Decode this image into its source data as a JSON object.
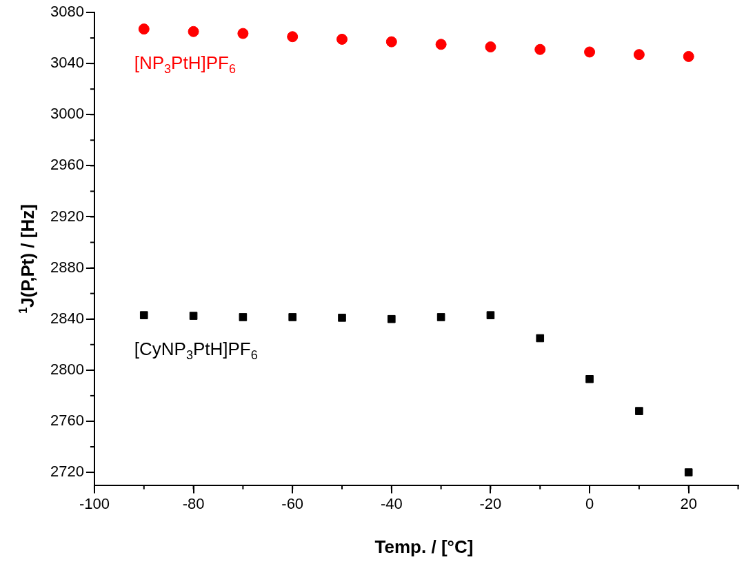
{
  "chart_data": {
    "type": "scatter",
    "xlabel": "Temp. / [°C]",
    "ylabel": "$^{1}$J(P,Pt) / [Hz]",
    "x": [
      -90,
      -80,
      -70,
      -60,
      -50,
      -40,
      -30,
      -20,
      -10,
      0,
      10,
      20
    ],
    "series": [
      {
        "name": "[NP$_{3}$PtH]PF$_{6}$",
        "color": "#ff0000",
        "marker": "circle",
        "values": [
          3067,
          3065,
          3063.5,
          3061,
          3059,
          3057,
          3055,
          3053,
          3051,
          3049,
          3047,
          3045.5
        ]
      },
      {
        "name": "[CyNP$_{3}$PtH]PF$_{6}$",
        "color": "#000000",
        "marker": "square",
        "values": [
          2843,
          2842.5,
          2841.5,
          2841.5,
          2841,
          2840,
          2841.5,
          2843,
          2825,
          2793,
          2768,
          2720
        ]
      }
    ],
    "xlim": [
      -100,
      30
    ],
    "xticks": [
      -100,
      -80,
      -60,
      -40,
      -20,
      0,
      20
    ],
    "ylim": [
      2710,
      3080
    ],
    "yticks": [
      2720,
      2760,
      2800,
      2840,
      2880,
      2920,
      2960,
      3000,
      3040,
      3080
    ],
    "grid": false,
    "legend": false
  }
}
